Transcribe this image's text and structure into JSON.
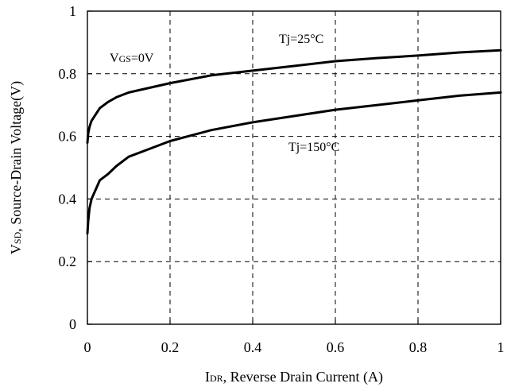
{
  "chart_data": {
    "type": "line",
    "xlabel": {
      "main": "I",
      "sub": "DR",
      "rest": ", Reverse Drain Current (A)"
    },
    "ylabel": {
      "main": "V",
      "sub": "SD",
      "rest": ", Source-Drain Voltage(V)"
    },
    "xlim": [
      0,
      1
    ],
    "ylim": [
      0,
      1
    ],
    "x_ticks": [
      0,
      0.2,
      0.4,
      0.6,
      0.8,
      1
    ],
    "x_tick_labels": [
      "0",
      "0.2",
      "0.4",
      "0.6",
      "0.8",
      "1"
    ],
    "y_ticks": [
      0,
      0.2,
      0.4,
      0.6,
      0.8,
      1
    ],
    "y_tick_labels": [
      "0",
      "0.2",
      "0.4",
      "0.6",
      "0.8",
      "1"
    ],
    "grid": true,
    "annotations": {
      "vgs": {
        "main": "V",
        "sub": "GS",
        "rest": "=0V"
      },
      "tj25": "Tj=25°C",
      "tj150": "Tj=150°C"
    },
    "series": [
      {
        "x": [
          0,
          0.002,
          0.005,
          0.01,
          0.02,
          0.03,
          0.05,
          0.07,
          0.1,
          0.15,
          0.2,
          0.3,
          0.4,
          0.5,
          0.6,
          0.7,
          0.8,
          0.9,
          1.0
        ],
        "y": [
          0.58,
          0.61,
          0.63,
          0.65,
          0.67,
          0.69,
          0.71,
          0.725,
          0.74,
          0.755,
          0.77,
          0.795,
          0.81,
          0.825,
          0.84,
          0.85,
          0.858,
          0.868,
          0.875
        ]
      },
      {
        "x": [
          0,
          0.002,
          0.005,
          0.01,
          0.02,
          0.03,
          0.05,
          0.07,
          0.1,
          0.15,
          0.2,
          0.3,
          0.4,
          0.5,
          0.6,
          0.7,
          0.8,
          0.9,
          1.0
        ],
        "y": [
          0.29,
          0.33,
          0.37,
          0.4,
          0.43,
          0.46,
          0.48,
          0.505,
          0.535,
          0.56,
          0.585,
          0.62,
          0.645,
          0.665,
          0.685,
          0.7,
          0.715,
          0.73,
          0.74
        ]
      }
    ]
  }
}
